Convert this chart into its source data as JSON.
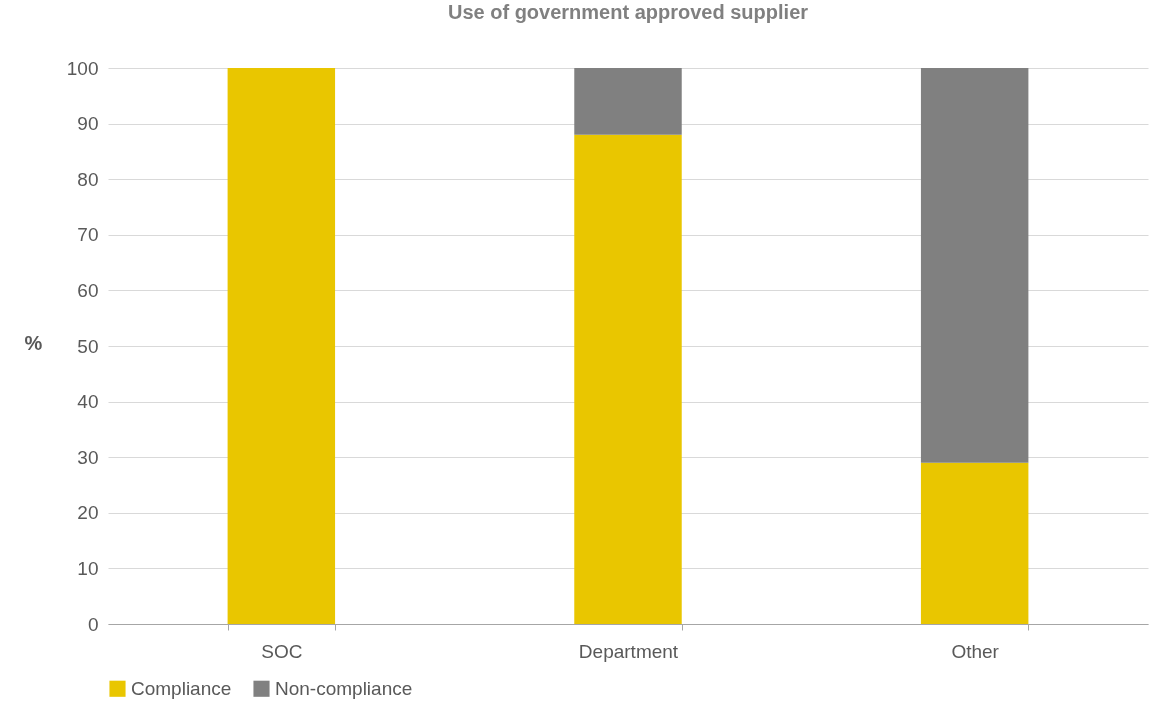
{
  "chart_data": {
    "type": "bar",
    "title": "Use of government approved supplier",
    "ylabel": "%",
    "categories": [
      "SOC",
      "Department",
      "Other"
    ],
    "stacked": true,
    "series": [
      {
        "name": "Compliance",
        "color": "#e9c600",
        "values": [
          100,
          88,
          29
        ]
      },
      {
        "name": "Non-compliance",
        "color": "#808080",
        "values": [
          0,
          12,
          71
        ]
      }
    ],
    "ylim": [
      0,
      100
    ],
    "yticks": [
      0,
      10,
      20,
      30,
      40,
      50,
      60,
      70,
      80,
      90,
      100
    ],
    "grid": "y",
    "legend": "bottom"
  }
}
